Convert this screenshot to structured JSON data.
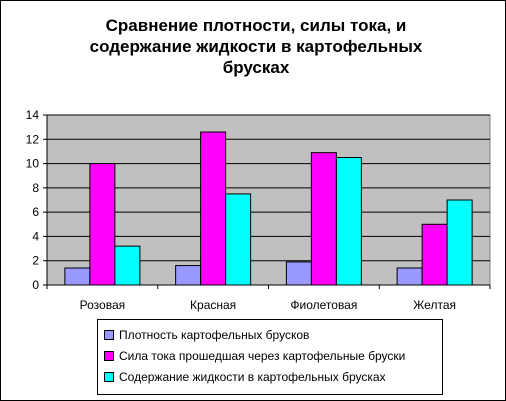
{
  "chart_data": {
    "type": "bar",
    "title": "Сравнение плотности, силы тока, и содержание жидкости в картофельных брусках",
    "categories": [
      "Розовая",
      "Красная",
      "Фиолетовая",
      "Желтая"
    ],
    "series": [
      {
        "name": "Плотность картофельных брусков",
        "color": "#9999FF",
        "values": [
          1.4,
          1.6,
          1.9,
          1.4
        ]
      },
      {
        "name": "Сила тока прошедшая через картофельные бруски",
        "color": "#FF00FF",
        "values": [
          10.0,
          12.6,
          10.9,
          5.0
        ]
      },
      {
        "name": "Содержание жидкости в картофельных брусках",
        "color": "#00FFFF",
        "values": [
          3.2,
          7.5,
          10.5,
          7.0
        ]
      }
    ],
    "ylim": [
      0,
      14
    ],
    "ytick_step": 2,
    "yticks": [
      "0",
      "2",
      "4",
      "6",
      "8",
      "10",
      "12",
      "14"
    ],
    "grid": true,
    "plot_background": "#C0C0C0",
    "legend_position": "bottom"
  }
}
